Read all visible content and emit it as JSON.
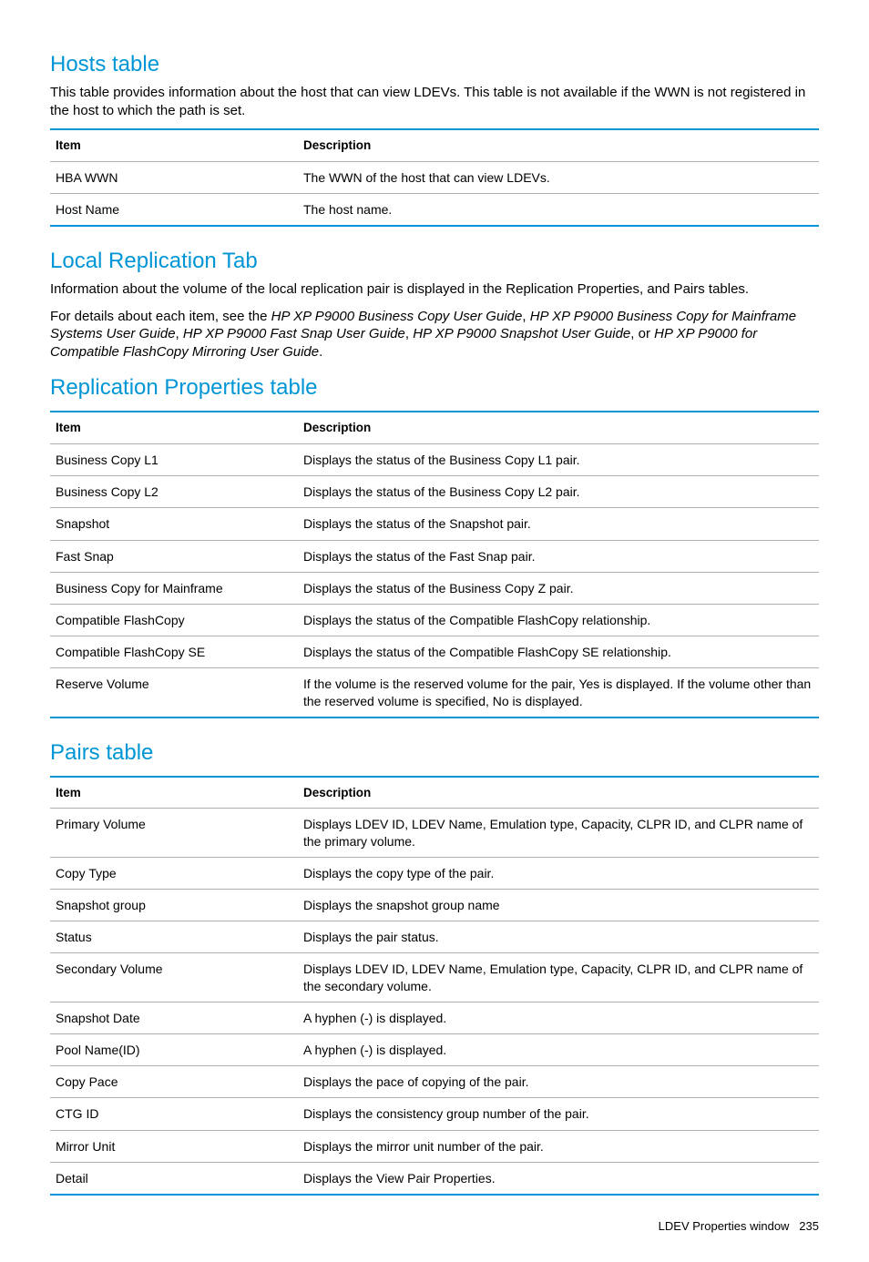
{
  "colors": {
    "heading": "#0096d6",
    "text": "#000000",
    "accent": "#0096d6",
    "rule": "#b0b0b0",
    "bg": "#ffffff"
  },
  "sections": {
    "hosts": {
      "heading": "Hosts table",
      "body": "This table provides information about the host that can view LDEVs. This table is not available if the WWN is not registered in the host to which the path is set.",
      "columns": [
        "Item",
        "Description"
      ],
      "rows": [
        [
          "HBA WWN",
          "The WWN of the host that can view LDEVs."
        ],
        [
          "Host Name",
          "The host name."
        ]
      ]
    },
    "localrep": {
      "heading": "Local Replication Tab",
      "body": "Information about the volume of the local replication pair is displayed in the Replication Properties, and Pairs tables.",
      "refs_prefix": "For details about each item, see the ",
      "refs_items": [
        "HP XP P9000 Business Copy User Guide",
        "HP XP P9000 Business Copy for Mainframe Systems User Guide",
        "HP XP P9000 Fast Snap User Guide",
        "HP XP P9000 Snapshot User Guide"
      ],
      "refs_or": ", or ",
      "refs_last": "HP XP P9000 for Compatible FlashCopy Mirroring User Guide",
      "refs_suffix": "."
    },
    "repprops": {
      "heading": "Replication Properties table",
      "columns": [
        "Item",
        "Description"
      ],
      "rows": [
        [
          "Business Copy L1",
          "Displays the status of the Business Copy L1 pair."
        ],
        [
          "Business Copy L2",
          "Displays the status of the Business Copy L2 pair."
        ],
        [
          "Snapshot",
          "Displays the status of the Snapshot pair."
        ],
        [
          "Fast Snap",
          "Displays the status of the Fast Snap pair."
        ],
        [
          "Business Copy for Mainframe",
          "Displays the status of the Business Copy Z pair."
        ],
        [
          "Compatible FlashCopy",
          "Displays the status of the Compatible FlashCopy relationship."
        ],
        [
          "Compatible FlashCopy SE",
          "Displays the status of the Compatible FlashCopy SE relationship."
        ],
        [
          "Reserve Volume",
          "If the volume is the reserved volume for the pair, Yes is displayed. If the volume other than the reserved volume is specified, No is displayed."
        ]
      ]
    },
    "pairs": {
      "heading": "Pairs table",
      "columns": [
        "Item",
        "Description"
      ],
      "rows": [
        [
          "Primary Volume",
          "Displays LDEV ID, LDEV Name, Emulation type, Capacity, CLPR ID, and CLPR name of the primary volume."
        ],
        [
          "Copy Type",
          "Displays the copy type of the pair."
        ],
        [
          "Snapshot group",
          "Displays the snapshot group name"
        ],
        [
          "Status",
          "Displays the pair status."
        ],
        [
          "Secondary Volume",
          "Displays LDEV ID, LDEV Name, Emulation type, Capacity, CLPR ID, and CLPR name of the secondary volume."
        ],
        [
          "Snapshot Date",
          "A hyphen (-) is displayed."
        ],
        [
          "Pool Name(ID)",
          "A hyphen (-) is displayed."
        ],
        [
          "Copy Pace",
          "Displays the pace of copying of the pair."
        ],
        [
          "CTG ID",
          "Displays the consistency group number of the pair."
        ],
        [
          "Mirror Unit",
          "Displays the mirror unit number of the pair."
        ],
        [
          "Detail",
          "Displays the View Pair Properties."
        ]
      ]
    }
  },
  "footer": {
    "title": "LDEV Properties window",
    "page": "235"
  }
}
